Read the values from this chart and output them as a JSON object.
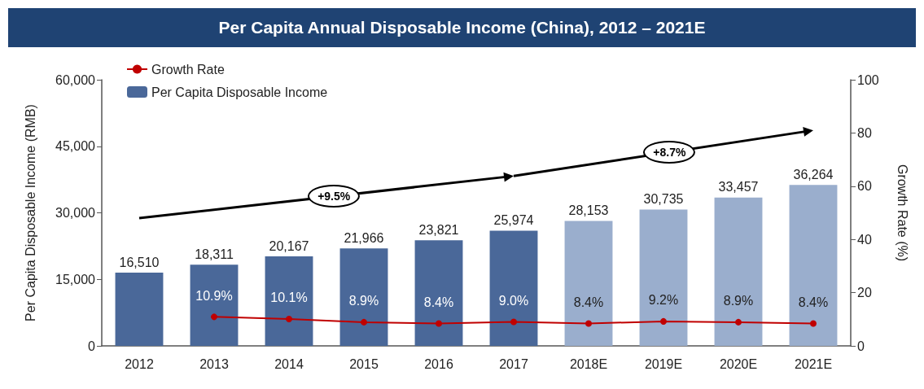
{
  "chart_data": {
    "type": "bar",
    "title": "Per Capita Annual Disposable Income (China), 2012 – 2021E",
    "ylabel": "Per Capita Disposable Income (RMB)",
    "y2label": "Growth Rate (%)",
    "categories": [
      "2012",
      "2013",
      "2014",
      "2015",
      "2016",
      "2017",
      "2018E",
      "2019E",
      "2020E",
      "2021E"
    ],
    "series": [
      {
        "name": "Growth Rate",
        "type": "line",
        "axis": "y2",
        "color": "#c00000",
        "marker": "circle",
        "values": [
          null,
          10.9,
          10.1,
          8.9,
          8.4,
          9.0,
          8.4,
          9.2,
          8.9,
          8.4
        ],
        "value_labels": [
          null,
          "10.9%",
          "10.1%",
          "8.9%",
          "8.4%",
          "9.0%",
          "8.4%",
          "9.2%",
          "8.9%",
          "8.4%"
        ]
      },
      {
        "name": "Per Capita Disposable Income",
        "color": "#4a6899",
        "colors": [
          "#4a6899",
          "#4a6899",
          "#4a6899",
          "#4a6899",
          "#4a6899",
          "#4a6899",
          "#9aaecd",
          "#9aaecd",
          "#9aaecd",
          "#9aaecd"
        ],
        "values": [
          16510,
          18311,
          20167,
          21966,
          23821,
          25974,
          28153,
          30735,
          33457,
          36264
        ],
        "value_labels": [
          "16,510",
          "18,311",
          "20,167",
          "21,966",
          "23,821",
          "25,974",
          "28,153",
          "30,735",
          "33,457",
          "36,264"
        ]
      }
    ],
    "ylim": [
      0,
      60000
    ],
    "yticks": [
      {
        "value": 0,
        "label": "0"
      },
      {
        "value": 15000,
        "label": "15,000"
      },
      {
        "value": 30000,
        "label": "30,000"
      },
      {
        "value": 45000,
        "label": "45,000"
      },
      {
        "value": 60000,
        "label": "60,000"
      }
    ],
    "y2lim": [
      0,
      100
    ],
    "y2ticks": [
      0,
      20,
      40,
      60,
      80,
      100
    ],
    "grid": false,
    "legend": "top left",
    "annotations": [
      "+9.5%",
      "+8.7%"
    ]
  }
}
